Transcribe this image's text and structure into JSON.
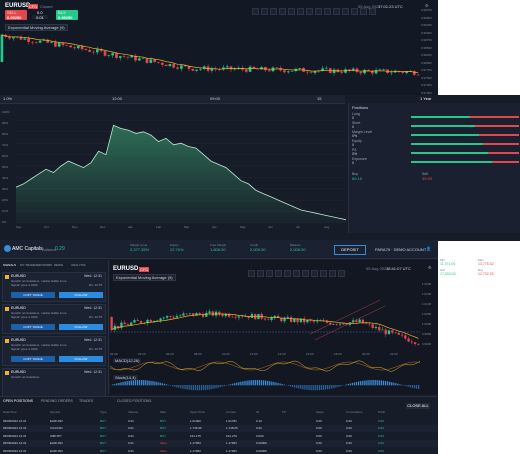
{
  "window1": {
    "symbol": "EURUSD",
    "symbol_badge": "CFD",
    "market_status": "Closed",
    "sell_label": "SELL",
    "sell_price": "0.99250",
    "buy_label": "BUY",
    "buy_price": "0.99250",
    "spread": "0.0",
    "lot_value": "0.01",
    "indicator_label": "Exponential Moving Average (9)",
    "date_readout": "05 Aug 2022",
    "time_readout": "17:01:23 UTC",
    "price_scale": [
      "0.99750",
      "0.99500",
      "0.99250",
      "0.99000",
      "0.98750",
      "0.98500",
      "0.98250",
      "0.98000",
      "0.97750",
      "0.97500",
      "0.97250",
      "0.97000"
    ]
  },
  "window2": {
    "header_left": "1.0%",
    "header_mid1": "12:00",
    "header_mid2": "09:00",
    "header_mid3": "15",
    "header_right": "1 Year",
    "y_axis": [
      "100%",
      "90%",
      "80%",
      "70%",
      "60%",
      "50%",
      "40%",
      "30%",
      "20%",
      "10%",
      "0%"
    ],
    "x_axis": [
      "Sep",
      "Oct",
      "Nov",
      "Dec",
      "Jan",
      "Feb",
      "Mar",
      "Apr",
      "May",
      "Jun",
      "Jul",
      "Aug"
    ],
    "chart_data": {
      "type": "area",
      "values": [
        22,
        24,
        27,
        30,
        33,
        31,
        35,
        38,
        36,
        34,
        37,
        44,
        42,
        60,
        58,
        57,
        55,
        56,
        54,
        50,
        52,
        48,
        49,
        47,
        46,
        42,
        38,
        36,
        34,
        30,
        26,
        24,
        20,
        18,
        16,
        14,
        12,
        10,
        8,
        7,
        6,
        5,
        4,
        3,
        2
      ]
    },
    "panel": {
      "title": "Positions",
      "rows": [
        {
          "label": "Long",
          "value": "0"
        },
        {
          "label": "Short",
          "value": "0"
        },
        {
          "label": "Margin Level",
          "value": "0%"
        },
        {
          "label": "Equity",
          "value": "0"
        },
        {
          "label": "P/L",
          "value": "0%"
        },
        {
          "label": "Exposure",
          "value": "0"
        }
      ],
      "stats": [
        {
          "label": "Buy",
          "value": "60.10"
        },
        {
          "label": "Sell",
          "value": "39.90"
        }
      ]
    }
  },
  "window3": {
    "brand": "AMC Capitals",
    "account_label": "Balance",
    "account_value": "0.29",
    "stats": [
      {
        "label": "Margin Level",
        "value": "3,377.35%"
      },
      {
        "label": "Equity",
        "value": "22.76%"
      },
      {
        "label": "Free Margin",
        "value": "1,808.00"
      },
      {
        "label": "Credit",
        "value": "2,000.00"
      },
      {
        "label": "Balance",
        "value": "2,008.00"
      }
    ],
    "deposit_label": "DEPOSIT",
    "account_id": "PARA75 · DEMO ACCOUNT",
    "side_values": [
      {
        "label": "Min",
        "value": "11,371.00"
      },
      {
        "label": "Max",
        "value": "13,775.32"
      },
      {
        "label": "Sell",
        "value": "17,000.00"
      },
      {
        "label": "Buy",
        "value": "12,732.25"
      }
    ],
    "tabs": [
      "SIGNALS",
      "MY TRADES",
      "NETWORK",
      "NEWS",
      "ANALYSIS"
    ],
    "signals": [
      {
        "symbol": "EURUSD",
        "time": "Wed. 12:31",
        "line1": "Growth: at resistance, market stable zone",
        "line2": "Signal: price 1.0100",
        "line3": "Dir: 13.75",
        "copy": "COPY TRADE",
        "follow": "FOLLOW"
      },
      {
        "symbol": "EURUSD",
        "time": "Wed. 12:31",
        "line1": "Growth: at resistance, market stable zone",
        "line2": "Signal: price 1.0100",
        "line3": "Dir: 13.75",
        "copy": "COPY TRADE",
        "follow": "FOLLOW"
      },
      {
        "symbol": "EURUSD",
        "time": "Wed. 12:31",
        "line1": "Growth: at resistance, market stable zone",
        "line2": "Signal: price 1.0100",
        "line3": "Dir: 13.75",
        "copy": "COPY TRADE",
        "follow": "FOLLOW"
      },
      {
        "symbol": "EURUSD",
        "time": "Wed. 12:31",
        "line1": "Growth: at resistance",
        "line2": "",
        "line3": "",
        "copy": "",
        "follow": ""
      }
    ],
    "chart_symbol": "EURUSD",
    "chart_badge": "CFD",
    "chart_indicator": "Exponential Moving Average (9)",
    "chart_date": "05 Aug 2022",
    "chart_time": "18:41:07 UTC",
    "macd_label": "MACD(12,26)",
    "stoch_label": "Stoch(14,3)",
    "chart_price_scale": [
      "1.0200",
      "1.0150",
      "1.0100",
      "1.0050",
      "1.0000",
      "0.9950",
      "0.9900"
    ],
    "chart_time_axis": [
      "02:00",
      "04:00",
      "06:00",
      "08:00",
      "10:00",
      "12:00",
      "14:00",
      "16:00",
      "18:00",
      "20:00",
      "22:00"
    ],
    "bottom_tabs": [
      "OPEN POSITIONS",
      "PENDING ORDERS",
      "TRADES",
      "CLOSED POSITIONS"
    ],
    "close_all": "CLOSE ALL",
    "table_headers": [
      "Date/Time",
      "Symbol",
      "Type",
      "Volume",
      "Side",
      "Open Price",
      "Current",
      "SL",
      "TP",
      "Swap",
      "Commission",
      "Profit",
      ""
    ],
    "table_rows": [
      [
        "05/08/2022 12:31",
        "EURUSD",
        "BUY",
        "0.01",
        "BUY",
        "1.01000",
        "1.01781",
        "0.10",
        "",
        "0.00",
        "0.00",
        "0.00",
        ""
      ],
      [
        "05/08/2022 12:31",
        "XAUUSD",
        "BUY",
        "0.01",
        "BUY",
        "1,746.06",
        "1,748.05",
        "0.00",
        "",
        "0.00",
        "0.00",
        "0.00",
        ""
      ],
      [
        "05/08/2022 12:31",
        "GBPJPY",
        "BUY",
        "0.01",
        "BUY",
        "161.175",
        "161.270",
        "0.000",
        "",
        "0.00",
        "0.00",
        "0.00",
        ""
      ],
      [
        "05/08/2022 12:31",
        "EURUSD",
        "BUY",
        "0.01",
        "SELL",
        "1.17963",
        "1.17963",
        "0.00000",
        "",
        "0.00",
        "0.00",
        "0.00",
        ""
      ],
      [
        "05/08/2022 12:31",
        "EURUSD",
        "BUY",
        "0.01",
        "SELL",
        "1.17963",
        "1.17963",
        "0.00000",
        "",
        "0.00",
        "0.00",
        "0.00",
        ""
      ]
    ]
  }
}
